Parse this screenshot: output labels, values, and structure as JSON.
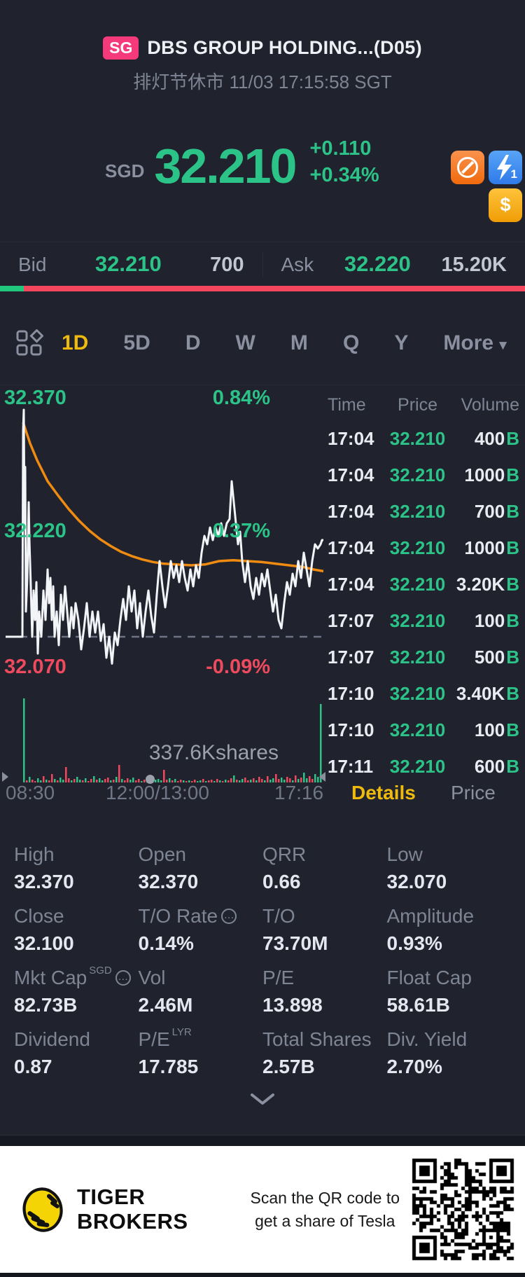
{
  "colors": {
    "green": "#2cc388",
    "red": "#f4465d",
    "orange": "#f08b12",
    "yellow": "#eeba0e",
    "badge_pink": "#f43a7a",
    "bg": "#20232d"
  },
  "header": {
    "market_badge": "SG",
    "title": "DBS GROUP HOLDING...(D05)",
    "subtitle": "排灯节休市 11/03 17:15:58 SGT"
  },
  "quote": {
    "currency": "SGD",
    "price": "32.210",
    "change": "+0.110",
    "change_pct": "+0.34%",
    "icons": [
      "no-trading",
      "flash-quote-level1",
      "cash-dollar"
    ]
  },
  "bid_ask": {
    "bid_label": "Bid",
    "bid_price": "32.210",
    "bid_size": "700",
    "ask_label": "Ask",
    "ask_price": "32.220",
    "ask_size": "15.20K",
    "bid_ratio": 0.045
  },
  "tabs": {
    "items": [
      "1D",
      "5D",
      "D",
      "W",
      "M",
      "Q",
      "Y"
    ],
    "active": "1D",
    "more_label": "More",
    "more_caret": "▼"
  },
  "chart_data": {
    "type": "line",
    "title": "DBS Group Holdings 1D intraday",
    "y_axis": [
      {
        "price": "32.370",
        "pct": "0.84%",
        "color": "green"
      },
      {
        "price": "32.220",
        "pct": "0.37%",
        "color": "green"
      },
      {
        "price": "32.070",
        "pct": "-0.09%",
        "color": "red"
      }
    ],
    "x_labels": [
      "08:30",
      "12:00/13:00",
      "17:16"
    ],
    "ylim": [
      32.05,
      32.39
    ],
    "high": 32.37,
    "low": 32.07,
    "prev_close": 32.1,
    "last": 32.21,
    "volume_label": "337.6Kshares",
    "legend": {
      "price_line": "white",
      "avg_line": "orange"
    },
    "price_line": [
      [
        0,
        32.1
      ],
      [
        24,
        32.1
      ],
      [
        25,
        32.345
      ],
      [
        26,
        32.37
      ],
      [
        27,
        32.23
      ],
      [
        28,
        32.302
      ],
      [
        29,
        32.13
      ],
      [
        31,
        32.17
      ],
      [
        33,
        32.26
      ],
      [
        34,
        32.215
      ],
      [
        36,
        32.16
      ],
      [
        38,
        32.1
      ],
      [
        40,
        32.155
      ],
      [
        42,
        32.12
      ],
      [
        44,
        32.165
      ],
      [
        46,
        32.08
      ],
      [
        48,
        32.13
      ],
      [
        51,
        32.1
      ],
      [
        54,
        32.155
      ],
      [
        57,
        32.12
      ],
      [
        60,
        32.18
      ],
      [
        62,
        32.14
      ],
      [
        64,
        32.17
      ],
      [
        66,
        32.12
      ],
      [
        68,
        32.16
      ],
      [
        70,
        32.1
      ],
      [
        73,
        32.13
      ],
      [
        76,
        32.09
      ],
      [
        79,
        32.15
      ],
      [
        82,
        32.12
      ],
      [
        85,
        32.16
      ],
      [
        88,
        32.13
      ],
      [
        91,
        32.1
      ],
      [
        94,
        32.135
      ],
      [
        97,
        32.11
      ],
      [
        100,
        32.14
      ],
      [
        104,
        32.12
      ],
      [
        108,
        32.085
      ],
      [
        112,
        32.11
      ],
      [
        116,
        32.14
      ],
      [
        120,
        32.1
      ],
      [
        124,
        32.13
      ],
      [
        128,
        32.105
      ],
      [
        132,
        32.13
      ],
      [
        136,
        32.095
      ],
      [
        140,
        32.115
      ],
      [
        144,
        32.075
      ],
      [
        148,
        32.1
      ],
      [
        152,
        32.068
      ],
      [
        156,
        32.105
      ],
      [
        160,
        32.09
      ],
      [
        164,
        32.12
      ],
      [
        168,
        32.145
      ],
      [
        172,
        32.12
      ],
      [
        176,
        32.16
      ],
      [
        180,
        32.13
      ],
      [
        184,
        32.155
      ],
      [
        188,
        32.11
      ],
      [
        192,
        32.14
      ],
      [
        196,
        32.1
      ],
      [
        200,
        32.13
      ],
      [
        204,
        32.155
      ],
      [
        208,
        32.125
      ],
      [
        212,
        32.105
      ],
      [
        216,
        32.15
      ],
      [
        220,
        32.19
      ],
      [
        224,
        32.16
      ],
      [
        228,
        32.135
      ],
      [
        232,
        32.16
      ],
      [
        236,
        32.19
      ],
      [
        240,
        32.17
      ],
      [
        244,
        32.185
      ],
      [
        248,
        32.165
      ],
      [
        252,
        32.19
      ],
      [
        256,
        32.17
      ],
      [
        260,
        32.155
      ],
      [
        264,
        32.18
      ],
      [
        268,
        32.16
      ],
      [
        272,
        32.185
      ],
      [
        276,
        32.17
      ],
      [
        280,
        32.2
      ],
      [
        284,
        32.22
      ],
      [
        288,
        32.21
      ],
      [
        292,
        32.23
      ],
      [
        296,
        32.215
      ],
      [
        300,
        32.23
      ],
      [
        304,
        32.22
      ],
      [
        308,
        32.235
      ],
      [
        312,
        32.22
      ],
      [
        316,
        32.235
      ],
      [
        320,
        32.24
      ],
      [
        323,
        32.285
      ],
      [
        326,
        32.26
      ],
      [
        329,
        32.235
      ],
      [
        332,
        32.21
      ],
      [
        335,
        32.225
      ],
      [
        338,
        32.19
      ],
      [
        342,
        32.165
      ],
      [
        346,
        32.19
      ],
      [
        350,
        32.16
      ],
      [
        354,
        32.145
      ],
      [
        358,
        32.17
      ],
      [
        362,
        32.15
      ],
      [
        366,
        32.175
      ],
      [
        370,
        32.16
      ],
      [
        374,
        32.18
      ],
      [
        378,
        32.155
      ],
      [
        382,
        32.13
      ],
      [
        386,
        32.15
      ],
      [
        390,
        32.12
      ],
      [
        394,
        32.11
      ],
      [
        398,
        32.14
      ],
      [
        402,
        32.165
      ],
      [
        406,
        32.15
      ],
      [
        410,
        32.175
      ],
      [
        414,
        32.16
      ],
      [
        418,
        32.19
      ],
      [
        422,
        32.17
      ],
      [
        426,
        32.2
      ],
      [
        430,
        32.18
      ],
      [
        434,
        32.16
      ],
      [
        438,
        32.19
      ],
      [
        442,
        32.21
      ],
      [
        446,
        32.205
      ],
      [
        450,
        32.21
      ],
      [
        452,
        32.215
      ],
      [
        454,
        32.215
      ]
    ],
    "avg_line": [
      [
        25,
        32.355
      ],
      [
        35,
        32.33
      ],
      [
        45,
        32.31
      ],
      [
        60,
        32.285
      ],
      [
        75,
        32.268
      ],
      [
        90,
        32.252
      ],
      [
        105,
        32.238
      ],
      [
        120,
        32.226
      ],
      [
        135,
        32.216
      ],
      [
        150,
        32.208
      ],
      [
        165,
        32.201
      ],
      [
        180,
        32.196
      ],
      [
        195,
        32.192
      ],
      [
        210,
        32.189
      ],
      [
        225,
        32.187
      ],
      [
        245,
        32.186
      ],
      [
        265,
        32.185
      ],
      [
        285,
        32.186
      ],
      [
        305,
        32.19
      ],
      [
        325,
        32.191
      ],
      [
        345,
        32.19
      ],
      [
        365,
        32.189
      ],
      [
        385,
        32.187
      ],
      [
        405,
        32.185
      ],
      [
        425,
        32.183
      ],
      [
        440,
        32.18
      ],
      [
        454,
        32.178
      ]
    ],
    "volume": {
      "heights": [
        5,
        3,
        8,
        4,
        2,
        6,
        3,
        9,
        4,
        3,
        12,
        5,
        3,
        7,
        4,
        22,
        6,
        3,
        5,
        8,
        4,
        3,
        6,
        2,
        5,
        9,
        4,
        6,
        3,
        5,
        7,
        3,
        4,
        8,
        25,
        5,
        3,
        6,
        4,
        7,
        3,
        5,
        2,
        4,
        6,
        3,
        8,
        4,
        5,
        3,
        18,
        4,
        6,
        3,
        5,
        2,
        4,
        3,
        2,
        3,
        2,
        4,
        2,
        3,
        5,
        2,
        3,
        4,
        2,
        5,
        3,
        2,
        4,
        3,
        6,
        10,
        4,
        3,
        5,
        7,
        3,
        4,
        6,
        3,
        8,
        5,
        3,
        9,
        4,
        6,
        12,
        5,
        7,
        4,
        8,
        6,
        3,
        10,
        5,
        7,
        14,
        6,
        9,
        5,
        12,
        8,
        16
      ],
      "colors": "grgrrggrgrrgrggrrgrggrgrrgrggrrgrgrgrrggrrgrgrrgggrrgrgrrgrgrrggrgrrgrgrgrrgrggrrgrgrrgrggrrggrrgrgrggrrggg",
      "spikes": [
        [
          25,
          120
        ],
        [
          449,
          112
        ]
      ]
    }
  },
  "trades": {
    "headers": [
      "Time",
      "Price",
      "Volume"
    ],
    "rows": [
      {
        "time": "17:04",
        "price": "32.210",
        "volume": "400",
        "side": "B"
      },
      {
        "time": "17:04",
        "price": "32.210",
        "volume": "1000",
        "side": "B"
      },
      {
        "time": "17:04",
        "price": "32.210",
        "volume": "700",
        "side": "B"
      },
      {
        "time": "17:04",
        "price": "32.210",
        "volume": "1000",
        "side": "B"
      },
      {
        "time": "17:04",
        "price": "32.210",
        "volume": "3.20K",
        "side": "B"
      },
      {
        "time": "17:07",
        "price": "32.210",
        "volume": "100",
        "side": "B"
      },
      {
        "time": "17:07",
        "price": "32.210",
        "volume": "500",
        "side": "B"
      },
      {
        "time": "17:10",
        "price": "32.210",
        "volume": "3.40K",
        "side": "B"
      },
      {
        "time": "17:10",
        "price": "32.210",
        "volume": "100",
        "side": "B"
      },
      {
        "time": "17:11",
        "price": "32.210",
        "volume": "600",
        "side": "B"
      }
    ]
  },
  "axis_tabs": {
    "details_label": "Details",
    "price_label": "Price"
  },
  "details": {
    "cells": [
      {
        "label": "High",
        "value": "32.370"
      },
      {
        "label": "Open",
        "value": "32.370"
      },
      {
        "label": "QRR",
        "value": "0.66"
      },
      {
        "label": "Low",
        "value": "32.070"
      },
      {
        "label": "Close",
        "value": "32.100"
      },
      {
        "label": "T/O Rate",
        "info": true,
        "value": "0.14%"
      },
      {
        "label": "T/O",
        "value": "73.70M"
      },
      {
        "label": "Amplitude",
        "value": "0.93%"
      },
      {
        "label": "Mkt Cap",
        "sup": "SGD",
        "info": true,
        "value": "82.73B"
      },
      {
        "label": "Vol",
        "value": "2.46M"
      },
      {
        "label": "P/E",
        "value": "13.898"
      },
      {
        "label": "Float Cap",
        "value": "58.61B"
      },
      {
        "label": "Dividend",
        "value": "0.87"
      },
      {
        "label": "P/E",
        "sup": "LYR",
        "value": "17.785"
      },
      {
        "label": "Total Shares",
        "value": "2.57B"
      },
      {
        "label": "Div. Yield",
        "value": "2.70%"
      }
    ]
  },
  "footer": {
    "brand_line1": "TIGER",
    "brand_line2": "BROKERS",
    "scan_line1": "Scan the QR code to",
    "scan_line2": "get a share of Tesla"
  }
}
